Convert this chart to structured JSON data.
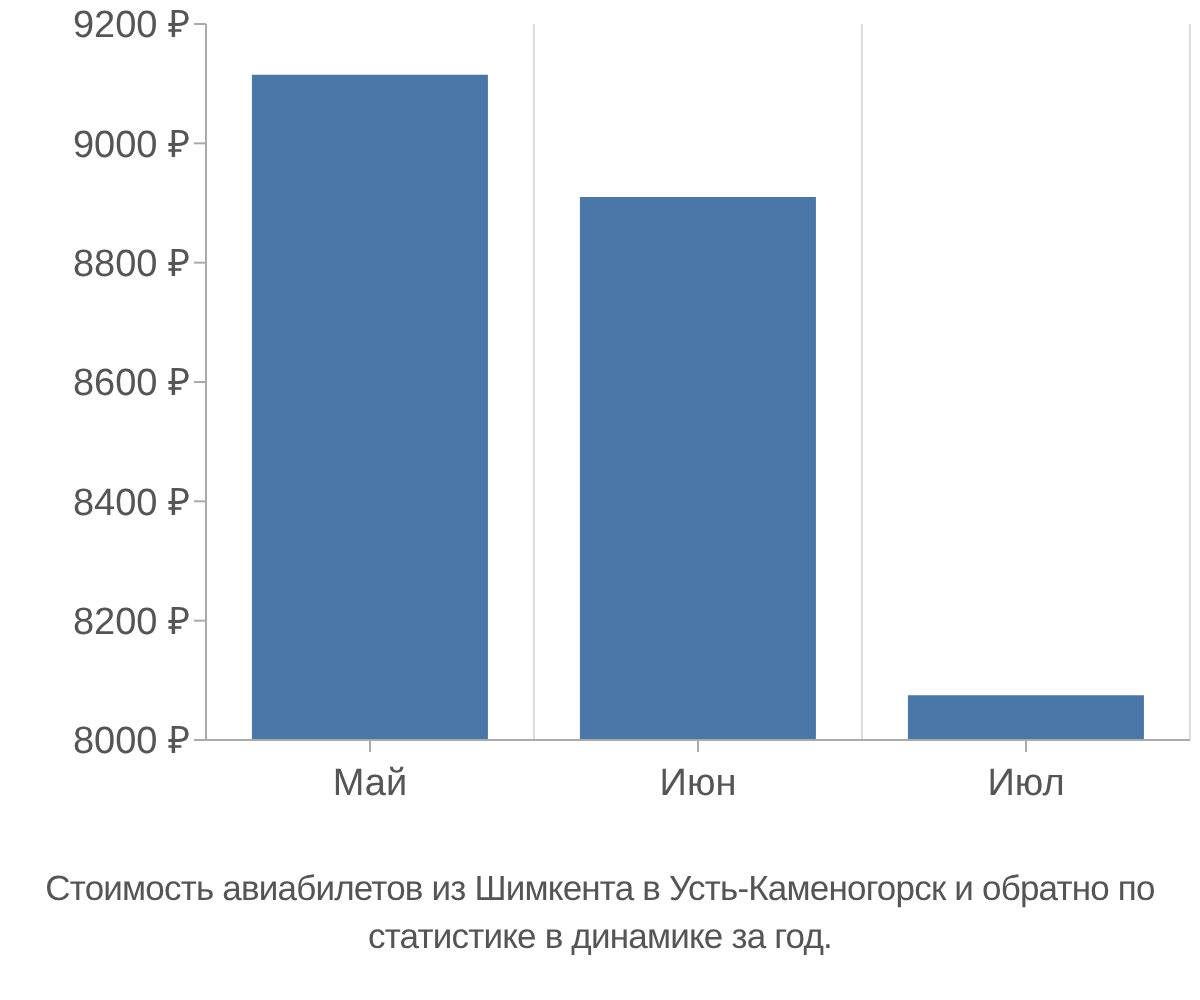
{
  "chart_data": {
    "type": "bar",
    "categories": [
      "Май",
      "Июн",
      "Июл"
    ],
    "values": [
      9115,
      8910,
      8075
    ],
    "color": "#4a76a8",
    "ylim": [
      8000,
      9200
    ],
    "yticks": [
      {
        "value": 8000,
        "label": "8000 ₽"
      },
      {
        "value": 8200,
        "label": "8200 ₽"
      },
      {
        "value": 8400,
        "label": "8400 ₽"
      },
      {
        "value": 8600,
        "label": "8600 ₽"
      },
      {
        "value": 8800,
        "label": "8800 ₽"
      },
      {
        "value": 9000,
        "label": "9000 ₽"
      },
      {
        "value": 9200,
        "label": "9200 ₽"
      }
    ],
    "grid": "x",
    "legend": false,
    "annotations": [
      "Стоимость авиабилетов из Шимкента в Усть-Каменогорск и обратно по статистике в динамике за год."
    ]
  }
}
